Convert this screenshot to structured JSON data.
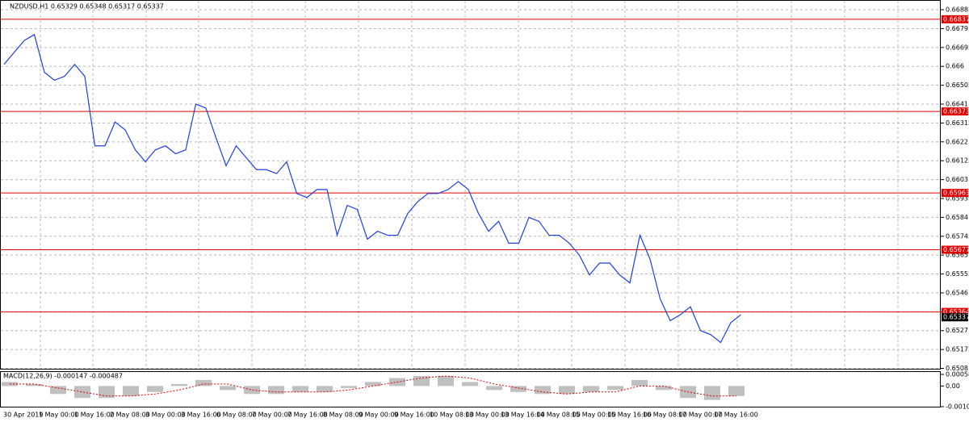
{
  "chart_data": [
    {
      "type": "line",
      "title": "NZDUSD,H1  0.65329 0.65348 0.65317 0.65337",
      "color": "#1f3fe0",
      "values": [
        0.6661,
        0.6667,
        0.6673,
        0.6676,
        0.6657,
        0.6653,
        0.6655,
        0.6661,
        0.6655,
        0.662,
        0.662,
        0.6632,
        0.6628,
        0.6618,
        0.6612,
        0.6618,
        0.662,
        0.6616,
        0.6618,
        0.6641,
        0.6639,
        0.6624,
        0.661,
        0.662,
        0.6614,
        0.6608,
        0.6608,
        0.6606,
        0.6612,
        0.6596,
        0.6594,
        0.6598,
        0.6598,
        0.6575,
        0.659,
        0.6588,
        0.6573,
        0.6577,
        0.6575,
        0.6575,
        0.6586,
        0.6592,
        0.6596,
        0.6596,
        0.6598,
        0.6602,
        0.6598,
        0.6586,
        0.6577,
        0.6582,
        0.6571,
        0.6571,
        0.6584,
        0.6582,
        0.6575,
        0.6575,
        0.6571,
        0.6565,
        0.6555,
        0.6561,
        0.6561,
        0.6555,
        0.6551,
        0.6575,
        0.6563,
        0.6543,
        0.6532,
        0.6535,
        0.6539,
        0.6527,
        0.6525,
        0.6521,
        0.6531,
        0.6535
      ],
      "ylim": [
        0.65074,
        0.66934
      ],
      "yticks": [
        0.66885,
        0.6679,
        0.66695,
        0.666,
        0.66505,
        0.6641,
        0.66315,
        0.6622,
        0.66125,
        0.6603,
        0.65935,
        0.6584,
        0.65745,
        0.6565,
        0.65555,
        0.6546,
        0.65365,
        0.6527,
        0.65175,
        0.6508
      ],
      "grid": true,
      "levels": [
        0.66837,
        0.66373,
        0.65963,
        0.65677,
        0.65364
      ],
      "level_color": "#e00000",
      "last": 0.65337,
      "time_labels": [
        "30 Apr 2019",
        "1 May 00:00",
        "1 May 16:00",
        "2 May 08:00",
        "3 May 00:00",
        "3 May 16:00",
        "6 May 08:00",
        "7 May 00:00",
        "7 May 16:00",
        "8 May 08:00",
        "9 May 00:00",
        "9 May 16:00",
        "10 May 08:00",
        "13 May 00:00",
        "13 May 16:00",
        "14 May 08:00",
        "15 May 00:00",
        "15 May 16:00",
        "16 May 08:00",
        "17 May 00:00",
        "17 May 16:00"
      ]
    },
    {
      "type": "bar",
      "title": "MACD(12,26,9) -0.000147 -0.000487",
      "color": "#c0c0c0",
      "signal_color": "#e00000",
      "values": [
        0.0002,
        0.0001,
        -0.0004,
        -0.0006,
        -0.0006,
        -0.0005,
        -0.0003,
        0.0001,
        0.0003,
        -0.0002,
        -0.0004,
        -0.0004,
        -0.0003,
        -0.0003,
        -0.0001,
        0.0002,
        0.0004,
        0.0005,
        0.0005,
        0.0002,
        -0.0002,
        -0.0003,
        -0.0004,
        -0.0004,
        -0.0003,
        -0.0002,
        0.0003,
        -0.0002,
        -0.0006,
        -0.0007,
        -0.0005
      ],
      "signal": [
        0.0001,
        0.0001,
        -0.0001,
        -0.0003,
        -0.0005,
        -0.0005,
        -0.0004,
        -0.0002,
        0.0001,
        0.0001,
        -0.0002,
        -0.0003,
        -0.0003,
        -0.0003,
        -0.0002,
        0,
        0.0002,
        0.0004,
        0.0005,
        0.0004,
        0.0001,
        -0.0001,
        -0.0003,
        -0.0004,
        -0.0003,
        -0.0003,
        0,
        0,
        -0.0003,
        -0.0005,
        -0.0005
      ],
      "ylim": [
        -0.001524,
        0.000745
      ],
      "yticks": [
        0.000583,
        {
          "value": 0,
          "label": "0.00"
        },
        -0.001038
      ]
    }
  ]
}
